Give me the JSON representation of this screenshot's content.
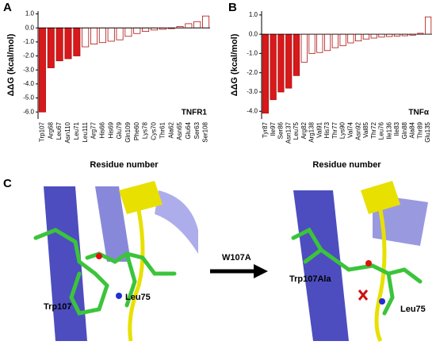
{
  "chart_data": [
    {
      "type": "bar",
      "panel_label": "A",
      "tag": "TNFR1",
      "ylabel": "ΔΔG (kcal/mol)",
      "xlabel": "Residue number",
      "categories": [
        "Trp107",
        "Arg68",
        "Leu67",
        "Asn110",
        "Leu71",
        "Leu111",
        "Arg77",
        "His66",
        "His69",
        "Glu79",
        "Gln109",
        "Phe60",
        "Lys78",
        "Cys70",
        "Thr61",
        "Ala62",
        "Asn65",
        "Glu64",
        "Ser63",
        "Ser108"
      ],
      "values": [
        -6.0,
        -2.85,
        -2.35,
        -2.2,
        -2.0,
        -1.35,
        -1.15,
        -1.05,
        -0.95,
        -0.85,
        -0.6,
        -0.4,
        -0.25,
        -0.15,
        -0.1,
        -0.05,
        0.1,
        0.3,
        0.45,
        0.85
      ],
      "colors": [
        "#d7191c",
        "#d7191c",
        "#d7191c",
        "#d7191c",
        "#d7191c",
        "#ffffff",
        "#ffffff",
        "#ffffff",
        "#ffffff",
        "#ffffff",
        "#ffffff",
        "#ffffff",
        "#ffffff",
        "#ffffff",
        "#ffffff",
        "#ffffff",
        "#ffffff",
        "#ffffff",
        "#ffffff",
        "#ffffff"
      ],
      "edge_color": "#b01010",
      "ylim": [
        -6.5,
        1.2
      ],
      "yticks": [
        {
          "value": 1,
          "label": "1.0"
        },
        {
          "value": 0,
          "label": "0.0"
        },
        {
          "value": -1,
          "label": "-1.0"
        },
        {
          "value": -2,
          "label": "-2.0"
        },
        {
          "value": -3,
          "label": "-3.0"
        },
        {
          "value": -4,
          "label": "-4.0"
        },
        {
          "value": -5,
          "label": "-5.0"
        },
        {
          "value": -6,
          "label": "-6.0"
        }
      ]
    },
    {
      "type": "bar",
      "panel_label": "B",
      "tag": "TNFα",
      "ylabel": "ΔΔG (kcal/mol)",
      "xlabel": "Residue number",
      "categories": [
        "Tyr87",
        "Ile97",
        "Ser86",
        "Asn137",
        "Leu75",
        "Arg82",
        "Arg138",
        "Val91",
        "His73",
        "Thr77",
        "Lys90",
        "Val74",
        "Asn92",
        "Val85",
        "Thr72",
        "Leu76",
        "Ile136",
        "Ile83",
        "Gln88",
        "Ala84",
        "Thr89",
        "Glu135"
      ],
      "values": [
        -4.1,
        -3.4,
        -3.0,
        -2.8,
        -2.15,
        -1.45,
        -1.0,
        -0.95,
        -0.85,
        -0.7,
        -0.6,
        -0.45,
        -0.35,
        -0.25,
        -0.2,
        -0.15,
        -0.12,
        -0.1,
        -0.08,
        -0.05,
        0.05,
        0.9
      ],
      "colors": [
        "#d7191c",
        "#d7191c",
        "#d7191c",
        "#d7191c",
        "#d7191c",
        "#ffffff",
        "#ffffff",
        "#ffffff",
        "#ffffff",
        "#ffffff",
        "#ffffff",
        "#ffffff",
        "#ffffff",
        "#ffffff",
        "#ffffff",
        "#ffffff",
        "#ffffff",
        "#ffffff",
        "#ffffff",
        "#ffffff",
        "#ffffff",
        "#ffffff"
      ],
      "edge_color": "#b01010",
      "ylim": [
        -4.4,
        1.2
      ],
      "yticks": [
        {
          "value": 1,
          "label": "1.0"
        },
        {
          "value": 0,
          "label": "0.0"
        },
        {
          "value": -1,
          "label": "-1.0"
        },
        {
          "value": -2,
          "label": "-2.0"
        },
        {
          "value": -3,
          "label": "-3.0"
        },
        {
          "value": -4,
          "label": "-4.0"
        }
      ]
    }
  ],
  "panel_c": {
    "label": "C",
    "mutation": "W107A",
    "left_residue": "Trp107",
    "left_partner": "Leu75",
    "right_residue": "Trp107Ala",
    "right_partner": "Leu75"
  }
}
